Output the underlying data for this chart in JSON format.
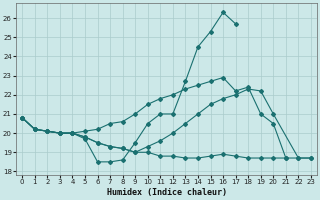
{
  "xlabel": "Humidex (Indice chaleur)",
  "background_color": "#cce8e8",
  "grid_color": "#aacccc",
  "line_color": "#1a7070",
  "xlim_min": -0.5,
  "xlim_max": 23.5,
  "ylim_min": 17.8,
  "ylim_max": 26.8,
  "yticks": [
    18,
    19,
    20,
    21,
    22,
    23,
    24,
    25,
    26
  ],
  "xticks": [
    0,
    1,
    2,
    3,
    4,
    5,
    6,
    7,
    8,
    9,
    10,
    11,
    12,
    13,
    14,
    15,
    16,
    17,
    18,
    19,
    20,
    21,
    22,
    23
  ],
  "line1_x": [
    0,
    1,
    2,
    3,
    4,
    5,
    6,
    7,
    8,
    9,
    10,
    11,
    12,
    13,
    14,
    15,
    16,
    17
  ],
  "line1_y": [
    20.8,
    20.2,
    20.1,
    20.0,
    20.0,
    19.7,
    18.5,
    18.5,
    18.6,
    19.5,
    20.5,
    21.0,
    21.0,
    22.7,
    24.5,
    25.3,
    26.3,
    25.7
  ],
  "line2_x": [
    0,
    1,
    2,
    3,
    4,
    5,
    6,
    7,
    8,
    9,
    10,
    11,
    12,
    13,
    14,
    15,
    16,
    17,
    18,
    19,
    20,
    21,
    22,
    23
  ],
  "line2_y": [
    20.8,
    20.2,
    20.1,
    20.0,
    20.0,
    20.1,
    20.2,
    20.5,
    20.6,
    21.0,
    21.5,
    21.8,
    22.0,
    22.3,
    22.5,
    22.7,
    22.9,
    22.2,
    22.4,
    21.0,
    20.5,
    18.7,
    null,
    null
  ],
  "line3_x": [
    0,
    1,
    2,
    3,
    4,
    5,
    6,
    7,
    8,
    9,
    10,
    11,
    12,
    13,
    14,
    15,
    16,
    17,
    18,
    19,
    20,
    21,
    22,
    23
  ],
  "line3_y": [
    20.8,
    20.2,
    20.1,
    20.0,
    20.0,
    19.8,
    19.5,
    19.3,
    19.2,
    19.0,
    19.0,
    18.8,
    18.8,
    18.7,
    18.7,
    18.8,
    18.9,
    18.8,
    18.7,
    18.7,
    18.7,
    18.7,
    18.7,
    18.7
  ],
  "line4_x": [
    0,
    1,
    2,
    3,
    4,
    5,
    6,
    7,
    8,
    9,
    10,
    11,
    12,
    13,
    14,
    15,
    16,
    17,
    18,
    19,
    20,
    22,
    23
  ],
  "line4_y": [
    20.8,
    20.2,
    20.1,
    20.0,
    20.0,
    19.8,
    19.5,
    19.3,
    19.2,
    19.0,
    19.3,
    19.6,
    20.0,
    20.5,
    21.0,
    21.5,
    21.8,
    22.0,
    22.3,
    22.2,
    21.0,
    18.7,
    18.7
  ]
}
